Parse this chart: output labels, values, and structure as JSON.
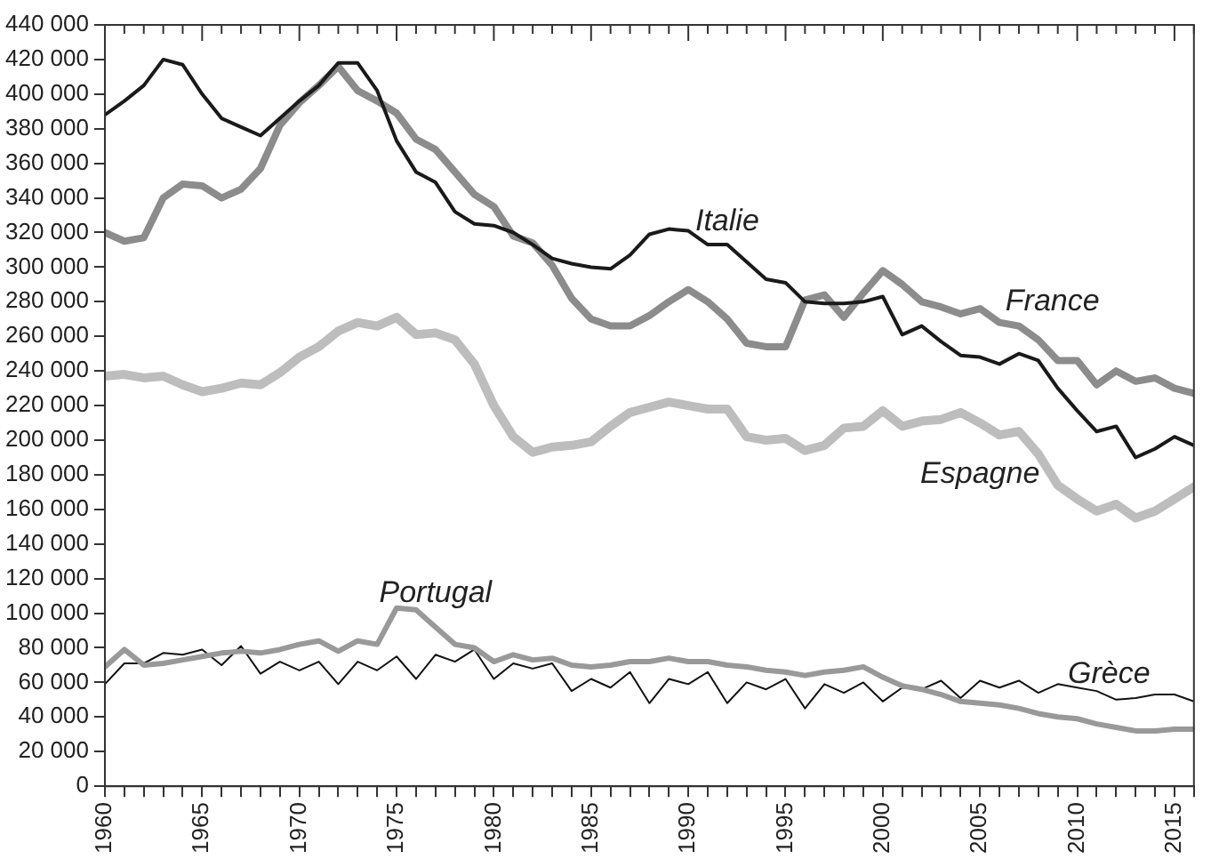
{
  "chart_data": {
    "type": "line",
    "x": [
      1960,
      1961,
      1962,
      1963,
      1964,
      1965,
      1966,
      1967,
      1968,
      1969,
      1970,
      1971,
      1972,
      1973,
      1974,
      1975,
      1976,
      1977,
      1978,
      1979,
      1980,
      1981,
      1982,
      1983,
      1984,
      1985,
      1986,
      1987,
      1988,
      1989,
      1990,
      1991,
      1992,
      1993,
      1994,
      1995,
      1996,
      1997,
      1998,
      1999,
      2000,
      2001,
      2002,
      2003,
      2004,
      2005,
      2006,
      2007,
      2008,
      2009,
      2010,
      2011,
      2012,
      2013,
      2014,
      2015,
      2016
    ],
    "series": [
      {
        "name": "Italie",
        "color": "#1a1a1a",
        "values": [
          388000,
          396000,
          405000,
          420000,
          417000,
          400000,
          386000,
          381000,
          376000,
          386000,
          396000,
          405000,
          418000,
          418000,
          402000,
          373000,
          355000,
          349000,
          332000,
          325000,
          324000,
          320000,
          313000,
          305000,
          302000,
          300000,
          299000,
          307000,
          319000,
          322000,
          321000,
          313000,
          313000,
          303000,
          293000,
          291000,
          280000,
          279000,
          279000,
          280000,
          283000,
          261000,
          266000,
          257000,
          249000,
          248000,
          244000,
          250000,
          246000,
          230000,
          217000,
          205000,
          208000,
          190000,
          195000,
          202000,
          197000
        ]
      },
      {
        "name": "France",
        "color": "#8c8c8c",
        "values": [
          320000,
          315000,
          317000,
          340000,
          348000,
          347000,
          340000,
          345000,
          357000,
          382000,
          395000,
          405000,
          416000,
          402000,
          396000,
          389000,
          374000,
          368000,
          355000,
          342000,
          335000,
          318000,
          314000,
          301000,
          282000,
          270000,
          266000,
          266000,
          272000,
          280000,
          287000,
          280000,
          270000,
          256000,
          254000,
          254000,
          281000,
          284000,
          271000,
          285000,
          298000,
          290000,
          280000,
          277000,
          273000,
          276000,
          268000,
          266000,
          258000,
          246000,
          246000,
          232000,
          240000,
          234000,
          236000,
          230000,
          227000
        ]
      },
      {
        "name": "Espagne",
        "color": "#bdbdbd",
        "values": [
          237000,
          238000,
          236000,
          237000,
          232000,
          228000,
          230000,
          233000,
          232000,
          239000,
          248000,
          254000,
          263000,
          268000,
          266000,
          271000,
          261000,
          262000,
          258000,
          244000,
          220000,
          202000,
          193000,
          196000,
          197000,
          199000,
          208000,
          216000,
          219000,
          222000,
          220000,
          218000,
          218000,
          202000,
          200000,
          201000,
          194000,
          197000,
          207000,
          208000,
          217000,
          208000,
          211000,
          212000,
          216000,
          210000,
          203000,
          205000,
          192000,
          174000,
          166000,
          159000,
          163000,
          155000,
          159000,
          166000,
          173000
        ]
      },
      {
        "name": "Portugal",
        "color": "#999999",
        "values": [
          69000,
          79000,
          70000,
          71000,
          73000,
          75000,
          77000,
          78000,
          77000,
          79000,
          82000,
          84000,
          78000,
          84000,
          82000,
          103000,
          102000,
          92000,
          82000,
          80000,
          72000,
          76000,
          73000,
          74000,
          70000,
          69000,
          70000,
          72000,
          72000,
          74000,
          72000,
          72000,
          70000,
          69000,
          67000,
          66000,
          64000,
          66000,
          67000,
          69000,
          63000,
          58000,
          56000,
          53000,
          49000,
          48000,
          47000,
          45000,
          42000,
          40000,
          39000,
          36000,
          34000,
          32000,
          32000,
          33000,
          33000
        ]
      },
      {
        "name": "Grèce",
        "color": "#111111",
        "values": [
          59000,
          71000,
          71000,
          77000,
          76000,
          79000,
          70000,
          81000,
          65000,
          72000,
          67000,
          72000,
          59000,
          72000,
          67000,
          75000,
          62000,
          76000,
          72000,
          79000,
          62000,
          71000,
          68000,
          71000,
          55000,
          62000,
          57000,
          66000,
          48000,
          62000,
          59000,
          66000,
          48000,
          60000,
          56000,
          62000,
          45000,
          59000,
          54000,
          60000,
          49000,
          57000,
          56000,
          61000,
          51000,
          61000,
          57000,
          61000,
          54000,
          59000,
          57000,
          55000,
          50000,
          51000,
          53000,
          53000,
          49000
        ]
      }
    ],
    "xlim": [
      1960,
      2016
    ],
    "xticks": [
      1960,
      {
        "value": 1961,
        "label": null
      },
      {
        "value": 1962,
        "label": null
      },
      {
        "value": 1963,
        "label": null
      },
      {
        "value": 1964,
        "label": null
      },
      1965,
      {
        "value": 1966,
        "label": null
      },
      {
        "value": 1967,
        "label": null
      },
      {
        "value": 1968,
        "label": null
      },
      {
        "value": 1969,
        "label": null
      },
      1970,
      {
        "value": 1971,
        "label": null
      },
      {
        "value": 1972,
        "label": null
      },
      {
        "value": 1973,
        "label": null
      },
      {
        "value": 1974,
        "label": null
      },
      1975,
      {
        "value": 1976,
        "label": null
      },
      {
        "value": 1977,
        "label": null
      },
      {
        "value": 1978,
        "label": null
      },
      {
        "value": 1979,
        "label": null
      },
      1980,
      {
        "value": 1981,
        "label": null
      },
      {
        "value": 1982,
        "label": null
      },
      {
        "value": 1983,
        "label": null
      },
      {
        "value": 1984,
        "label": null
      },
      1985,
      {
        "value": 1986,
        "label": null
      },
      {
        "value": 1987,
        "label": null
      },
      {
        "value": 1988,
        "label": null
      },
      {
        "value": 1989,
        "label": null
      },
      1990,
      {
        "value": 1991,
        "label": null
      },
      {
        "value": 1992,
        "label": null
      },
      {
        "value": 1993,
        "label": null
      },
      {
        "value": 1994,
        "label": null
      },
      1995,
      {
        "value": 1996,
        "label": null
      },
      {
        "value": 1997,
        "label": null
      },
      {
        "value": 1998,
        "label": null
      },
      {
        "value": 1999,
        "label": null
      },
      2000,
      {
        "value": 2001,
        "label": null
      },
      {
        "value": 2002,
        "label": null
      },
      {
        "value": 2003,
        "label": null
      },
      {
        "value": 2004,
        "label": null
      },
      2005,
      {
        "value": 2006,
        "label": null
      },
      {
        "value": 2007,
        "label": null
      },
      {
        "value": 2008,
        "label": null
      },
      {
        "value": 2009,
        "label": null
      },
      2010,
      {
        "value": 2011,
        "label": null
      },
      {
        "value": 2012,
        "label": null
      },
      {
        "value": 2013,
        "label": null
      },
      {
        "value": 2014,
        "label": null
      },
      2015,
      {
        "value": 2016,
        "label": null
      }
    ],
    "ylim": [
      0,
      440000
    ],
    "yticks": [
      {
        "value": 0,
        "label": "0"
      },
      {
        "value": 20000,
        "label": "20 000"
      },
      {
        "value": 40000,
        "label": "40 000"
      },
      {
        "value": 60000,
        "label": "60 000"
      },
      {
        "value": 80000,
        "label": "80 000"
      },
      {
        "value": 100000,
        "label": "100 000"
      },
      {
        "value": 120000,
        "label": "120 000"
      },
      {
        "value": 140000,
        "label": "140 000"
      },
      {
        "value": 160000,
        "label": "160 000"
      },
      {
        "value": 180000,
        "label": "180 000"
      },
      {
        "value": 200000,
        "label": "200 000"
      },
      {
        "value": 220000,
        "label": "220 000"
      },
      {
        "value": 240000,
        "label": "240 000"
      },
      {
        "value": 260000,
        "label": "260 000"
      },
      {
        "value": 280000,
        "label": "280 000"
      },
      {
        "value": 300000,
        "label": "300 000"
      },
      {
        "value": 320000,
        "label": "320 000"
      },
      {
        "value": 340000,
        "label": "340 000"
      },
      {
        "value": 360000,
        "label": "360 000"
      },
      {
        "value": 380000,
        "label": "380 000"
      },
      {
        "value": 400000,
        "label": "400 000"
      },
      {
        "value": 420000,
        "label": "420 000"
      },
      {
        "value": 440000,
        "label": "440 000"
      }
    ],
    "grid": false,
    "legend": false,
    "marker": "none",
    "line_style": "solid"
  }
}
